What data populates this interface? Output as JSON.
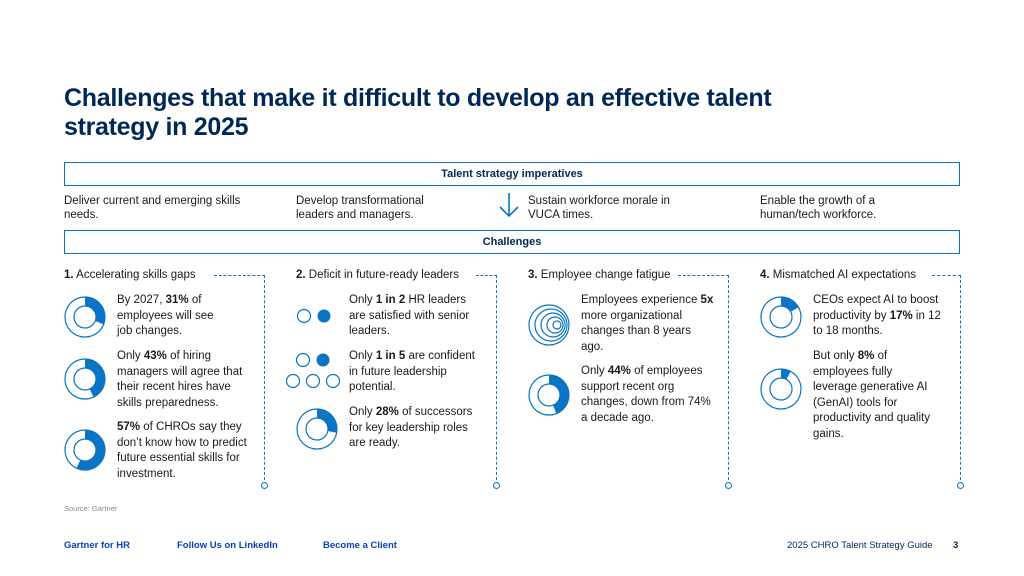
{
  "title": "Challenges that make it difficult to develop an effective talent strategy in 2025",
  "imperatives": {
    "header": "Talent strategy imperatives",
    "items": [
      "Deliver current and emerging skills needs.",
      "Develop transformational leaders and managers.",
      "Sustain workforce morale in VUCA times.",
      "Enable the growth of a human/tech workforce."
    ]
  },
  "challenges": {
    "header": "Challenges",
    "columns": [
      {
        "num": "1.",
        "label": "Accelerating skills gaps",
        "stats": [
          {
            "pre": "By 2027, ",
            "bold": "31%",
            "post": " of employees will see job changes.",
            "percent": 31
          },
          {
            "pre": "Only ",
            "bold": "43%",
            "post": " of hiring managers will agree that their recent hires have skills preparedness.",
            "percent": 43
          },
          {
            "pre": "",
            "bold": "57%",
            "post": " of CHROs say they don’t know how to predict future essential skills for investment.",
            "percent": 57
          }
        ]
      },
      {
        "num": "2.",
        "label": "Deficit in future-ready leaders",
        "stats": [
          {
            "pre": "Only ",
            "bold": "1 in 2",
            "post": " HR leaders are satisfied with senior leaders."
          },
          {
            "pre": "Only ",
            "bold": "1 in 5",
            "post": " are confident in future leadership potential."
          },
          {
            "pre": "Only ",
            "bold": "28%",
            "post": " of successors for key leadership roles are ready.",
            "percent": 28
          }
        ]
      },
      {
        "num": "3.",
        "label": "Employee change fatigue",
        "stats": [
          {
            "pre": "Employees experience ",
            "bold": "5x",
            "post": " more organizational changes than 8 years ago."
          },
          {
            "pre": "Only ",
            "bold": "44%",
            "post": " of employees support recent org changes, down from 74% a decade ago.",
            "percent": 44
          }
        ]
      },
      {
        "num": "4.",
        "label": "Mismatched AI expectations",
        "stats": [
          {
            "pre": "CEOs expect AI to boost productivity by ",
            "bold": "17%",
            "post": " in 12 to 18 months.",
            "percent": 17
          },
          {
            "pre": "But only ",
            "bold": "8%",
            "post": " of employees fully leverage generative AI (GenAI) tools for productivity and quality gains.",
            "percent": 8
          }
        ]
      }
    ]
  },
  "source": "Source: Gartner",
  "footer": {
    "links": [
      "Gartner for HR",
      "Follow Us on LinkedIn",
      "Become a Client"
    ],
    "guide": "2025 CHRO Talent Strategy Guide",
    "page": "3"
  },
  "colors": {
    "accent": "#0b74c4",
    "navy": "#002856",
    "link": "#0b3fb8"
  }
}
